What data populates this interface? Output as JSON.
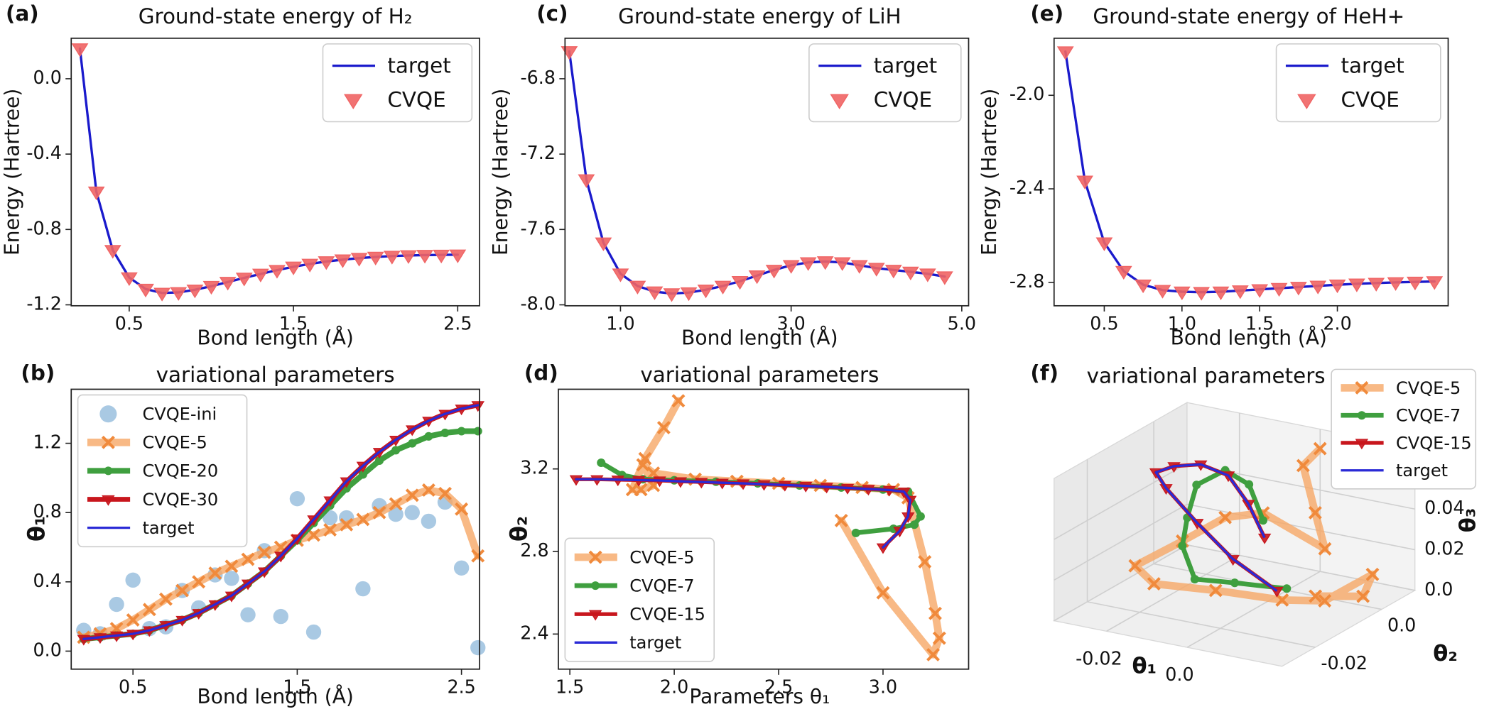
{
  "chart_data": [
    {
      "type": "line",
      "panel_label": "(a)",
      "title": "Ground-state energy of H₂",
      "x_label": "Bond length (Å)",
      "y_label": "Energy (Hartree)",
      "x": [
        0.2,
        0.3,
        0.4,
        0.5,
        0.6,
        0.7,
        0.8,
        0.9,
        1.0,
        1.1,
        1.2,
        1.3,
        1.4,
        1.5,
        1.6,
        1.7,
        1.8,
        1.9,
        2.0,
        2.1,
        2.2,
        2.3,
        2.4,
        2.5
      ],
      "series": [
        {
          "name": "target",
          "color": "#1a1acc",
          "linewidth": 2.5,
          "values": [
            0.16,
            -0.6,
            -0.91,
            -1.055,
            -1.116,
            -1.137,
            -1.134,
            -1.12,
            -1.101,
            -1.079,
            -1.057,
            -1.036,
            -1.016,
            -0.998,
            -0.983,
            -0.97,
            -0.96,
            -0.952,
            -0.946,
            -0.941,
            -0.938,
            -0.936,
            -0.935,
            -0.934
          ]
        },
        {
          "name": "CVQE",
          "color": "#f06464",
          "marker": "triangle",
          "line": false,
          "values": [
            0.16,
            -0.6,
            -0.91,
            -1.055,
            -1.116,
            -1.137,
            -1.134,
            -1.12,
            -1.101,
            -1.079,
            -1.057,
            -1.036,
            -1.016,
            -0.998,
            -0.983,
            -0.97,
            -0.96,
            -0.952,
            -0.946,
            -0.941,
            -0.938,
            -0.936,
            -0.935,
            -0.934
          ]
        }
      ],
      "xlim": [
        0.147,
        2.633
      ],
      "ylim": [
        -1.205,
        0.215
      ],
      "xticks": [
        0.5,
        1.5,
        2.5
      ],
      "yticks": [
        {
          "value": 0,
          "label": "0.0"
        },
        -0.4,
        -0.8,
        -1.2
      ],
      "legend": "upper right"
    },
    {
      "type": "line",
      "panel_label": "(b)",
      "title": "variational parameters",
      "x_label": "Bond length (Å)",
      "y_label": "θ₁",
      "x": [
        0.2,
        0.3,
        0.4,
        0.5,
        0.6,
        0.7,
        0.8,
        0.9,
        1.0,
        1.1,
        1.2,
        1.3,
        1.4,
        1.5,
        1.6,
        1.7,
        1.8,
        1.9,
        2.0,
        2.1,
        2.2,
        2.3,
        2.4,
        2.5,
        2.6
      ],
      "series": [
        {
          "name": "CVQE-ini",
          "color": "#a9c9e3",
          "marker": "circle",
          "line": false,
          "values": [
            0.12,
            0.1,
            0.27,
            0.41,
            0.13,
            0.14,
            0.35,
            0.25,
            0.44,
            0.42,
            0.21,
            0.58,
            0.2,
            0.88,
            0.11,
            0.77,
            0.77,
            0.36,
            0.84,
            0.79,
            0.8,
            0.75,
            0.86,
            0.48,
            0.02
          ]
        },
        {
          "name": "CVQE-5",
          "color": "#f6a866",
          "marker": "x",
          "linewidth": 8,
          "values": [
            0.08,
            0.1,
            0.13,
            0.18,
            0.24,
            0.3,
            0.35,
            0.4,
            0.45,
            0.49,
            0.53,
            0.57,
            0.6,
            0.64,
            0.67,
            0.7,
            0.73,
            0.76,
            0.8,
            0.85,
            0.9,
            0.93,
            0.91,
            0.82,
            0.55
          ]
        },
        {
          "name": "CVQE-20",
          "color": "#3f9f3f",
          "marker": "circle",
          "linewidth": 6,
          "values": [
            0.07,
            0.08,
            0.09,
            0.1,
            0.12,
            0.15,
            0.18,
            0.22,
            0.27,
            0.32,
            0.39,
            0.46,
            0.55,
            0.64,
            0.74,
            0.84,
            0.94,
            1.02,
            1.1,
            1.16,
            1.2,
            1.24,
            1.26,
            1.27,
            1.27
          ]
        },
        {
          "name": "CVQE-30",
          "color": "#c8161d",
          "marker": "triangle",
          "linewidth": 5,
          "values": [
            0.07,
            0.08,
            0.09,
            0.1,
            0.12,
            0.15,
            0.18,
            0.22,
            0.27,
            0.32,
            0.39,
            0.46,
            0.55,
            0.65,
            0.76,
            0.87,
            0.98,
            1.07,
            1.15,
            1.22,
            1.28,
            1.33,
            1.37,
            1.4,
            1.42
          ]
        },
        {
          "name": "target",
          "color": "#2a2ad6",
          "linewidth": 2.5,
          "values": [
            0.07,
            0.08,
            0.09,
            0.1,
            0.12,
            0.15,
            0.18,
            0.22,
            0.27,
            0.32,
            0.39,
            0.46,
            0.55,
            0.65,
            0.76,
            0.87,
            0.98,
            1.07,
            1.15,
            1.22,
            1.28,
            1.33,
            1.37,
            1.4,
            1.42
          ]
        }
      ],
      "xlim": [
        0.124,
        2.61
      ],
      "ylim": [
        -0.104,
        1.512
      ],
      "xticks": [
        0.5,
        1.5,
        2.5
      ],
      "yticks": [
        {
          "value": 0,
          "label": "0.0"
        },
        0.4,
        0.8,
        1.2
      ],
      "legend": "upper left"
    },
    {
      "type": "line",
      "panel_label": "(c)",
      "title": "Ground-state energy of LiH",
      "x_label": "Bond length (Å)",
      "y_label": "Energy (Hartree)",
      "x": [
        0.4,
        0.6,
        0.8,
        1.0,
        1.2,
        1.4,
        1.6,
        1.8,
        2.0,
        2.2,
        2.4,
        2.6,
        2.8,
        3.0,
        3.2,
        3.4,
        3.6,
        3.8,
        4.0,
        4.2,
        4.4,
        4.6,
        4.8
      ],
      "series": [
        {
          "name": "target",
          "color": "#1a1acc",
          "linewidth": 2.5,
          "values": [
            -6.655,
            -7.335,
            -7.67,
            -7.835,
            -7.9,
            -7.93,
            -7.94,
            -7.935,
            -7.92,
            -7.9,
            -7.875,
            -7.845,
            -7.815,
            -7.79,
            -7.775,
            -7.77,
            -7.775,
            -7.79,
            -7.805,
            -7.815,
            -7.825,
            -7.835,
            -7.85
          ]
        },
        {
          "name": "CVQE",
          "color": "#f06464",
          "marker": "triangle",
          "line": false,
          "values": [
            -6.655,
            -7.335,
            -7.67,
            -7.835,
            -7.9,
            -7.93,
            -7.94,
            -7.935,
            -7.92,
            -7.9,
            -7.875,
            -7.845,
            -7.815,
            -7.79,
            -7.775,
            -7.77,
            -7.775,
            -7.79,
            -7.805,
            -7.815,
            -7.825,
            -7.835,
            -7.85
          ]
        }
      ],
      "xlim": [
        0.35,
        5.08
      ],
      "ylim": [
        -8.005,
        -6.585
      ],
      "xticks": [
        {
          "value": 1,
          "label": "1.0"
        },
        {
          "value": 3,
          "label": "3.0"
        },
        {
          "value": 5,
          "label": "5.0"
        }
      ],
      "yticks": [
        -6.8,
        -7.2,
        -7.6,
        {
          "value": -8,
          "label": "-8.0"
        }
      ],
      "legend": "upper right"
    },
    {
      "type": "line",
      "panel_label": "(d)",
      "title": "variational parameters",
      "x_label": "Parameters θ₁",
      "y_label": "θ₂",
      "series": [
        {
          "name": "CVQE-5",
          "color": "#f6a866",
          "marker": "x",
          "linewidth": 8,
          "x": [
            2.02,
            1.95,
            1.86,
            1.8,
            1.84,
            1.9,
            1.85,
            1.9,
            2.1,
            2.3,
            2.5,
            2.7,
            2.9,
            3.05,
            3.12,
            3.2,
            3.25,
            3.27,
            3.24,
            3.0,
            2.8
          ],
          "values": [
            3.53,
            3.4,
            3.25,
            3.1,
            3.1,
            3.12,
            3.22,
            3.18,
            3.15,
            3.14,
            3.13,
            3.12,
            3.11,
            3.1,
            3.06,
            2.75,
            2.5,
            2.38,
            2.3,
            2.6,
            2.95
          ]
        },
        {
          "name": "CVQE-7",
          "color": "#3f9f3f",
          "marker": "circle",
          "linewidth": 5,
          "x": [
            1.65,
            1.75,
            1.85,
            2.0,
            2.2,
            2.4,
            2.6,
            2.8,
            3.0,
            3.12,
            3.18,
            3.15,
            3.05,
            2.87
          ],
          "values": [
            3.23,
            3.17,
            3.15,
            3.145,
            3.138,
            3.13,
            3.12,
            3.11,
            3.1,
            3.09,
            2.97,
            2.93,
            2.91,
            2.89
          ]
        },
        {
          "name": "CVQE-15",
          "color": "#c8161d",
          "marker": "triangle",
          "linewidth": 4,
          "x": [
            1.53,
            1.63,
            1.73,
            1.83,
            1.93,
            2.03,
            2.13,
            2.23,
            2.33,
            2.43,
            2.53,
            2.63,
            2.73,
            2.83,
            2.93,
            3.03,
            3.1,
            3.13,
            3.12,
            3.08,
            3.0
          ],
          "values": [
            3.15,
            3.15,
            3.148,
            3.146,
            3.144,
            3.14,
            3.137,
            3.133,
            3.13,
            3.126,
            3.122,
            3.118,
            3.113,
            3.108,
            3.103,
            3.098,
            3.09,
            3.05,
            2.97,
            2.9,
            2.82
          ]
        },
        {
          "name": "target",
          "color": "#2a2ad6",
          "linewidth": 2.5,
          "x": [
            1.53,
            1.63,
            1.73,
            1.83,
            1.93,
            2.03,
            2.13,
            2.23,
            2.33,
            2.43,
            2.53,
            2.63,
            2.73,
            2.83,
            2.93,
            3.03,
            3.1,
            3.13,
            3.12,
            3.08,
            3.0
          ],
          "values": [
            3.15,
            3.15,
            3.148,
            3.146,
            3.144,
            3.14,
            3.137,
            3.133,
            3.13,
            3.126,
            3.122,
            3.118,
            3.113,
            3.108,
            3.103,
            3.098,
            3.09,
            3.05,
            2.97,
            2.9,
            2.82
          ]
        }
      ],
      "xlim": [
        1.445,
        3.41
      ],
      "ylim": [
        2.23,
        3.586
      ],
      "xticks": [
        1.5,
        {
          "value": 2,
          "label": "2.0"
        },
        2.5,
        {
          "value": 3,
          "label": "3.0"
        }
      ],
      "yticks": [
        2.4,
        2.8,
        3.2
      ],
      "legend": "lower left"
    },
    {
      "type": "line",
      "panel_label": "(e)",
      "title": "Ground-state energy of HeH+",
      "x_label": "Bond length (Å)",
      "y_label": "Energy (Hartree)",
      "x": [
        0.25,
        0.375,
        0.5,
        0.625,
        0.75,
        0.875,
        1.0,
        1.125,
        1.25,
        1.375,
        1.5,
        1.625,
        1.75,
        1.875,
        2.0,
        2.125,
        2.25,
        2.375,
        2.5,
        2.625
      ],
      "series": [
        {
          "name": "target",
          "color": "#1a1acc",
          "linewidth": 2.5,
          "values": [
            -1.813,
            -2.366,
            -2.63,
            -2.752,
            -2.81,
            -2.833,
            -2.84,
            -2.842,
            -2.84,
            -2.835,
            -2.83,
            -2.825,
            -2.82,
            -2.815,
            -2.81,
            -2.806,
            -2.803,
            -2.8,
            -2.798,
            -2.796
          ]
        },
        {
          "name": "CVQE",
          "color": "#f06464",
          "marker": "triangle",
          "line": false,
          "values": [
            -1.813,
            -2.366,
            -2.63,
            -2.752,
            -2.81,
            -2.833,
            -2.84,
            -2.842,
            -2.84,
            -2.835,
            -2.83,
            -2.825,
            -2.82,
            -2.815,
            -2.81,
            -2.806,
            -2.803,
            -2.8,
            -2.798,
            -2.796
          ]
        }
      ],
      "xlim": [
        0.177,
        2.713
      ],
      "ylim": [
        -2.9,
        -1.756
      ],
      "xticks": [
        0.5,
        {
          "value": 1,
          "label": "1.0"
        },
        1.5,
        {
          "value": 2,
          "label": "2.0"
        }
      ],
      "yticks": [
        {
          "value": -2,
          "label": "-2.0"
        },
        -2.4,
        -2.8
      ],
      "legend": "upper right"
    },
    {
      "type": "line3d",
      "panel_label": "(f)",
      "title": "variational parameters",
      "x_label": "θ₁",
      "y_label": "θ₂",
      "z_label": "θ₃",
      "series": [
        {
          "name": "CVQE-5",
          "color": "#f6a866",
          "marker": "x",
          "linewidth": 8,
          "x": [
            0.0041,
            -0.0001,
            0.0029,
            0.0053,
            -0.0059,
            -0.0153,
            -0.0259,
            -0.0294,
            -0.0206,
            -0.0053,
            0.0153,
            0.0176,
            0.0171,
            0.023,
            0.0153
          ],
          "y": [
            0.005,
            0.005,
            0.005,
            0.005,
            0,
            0,
            0,
            -0.01,
            -0.015,
            -0.015,
            -0.02,
            -0.01,
            0.005,
            -0.005,
            -0.01
          ],
          "z": [
            0.0667,
            0.0567,
            0.0347,
            0.0179,
            0.0358,
            0.0298,
            0.014,
            0.0098,
            0.0091,
            0.0119,
            0.02,
            0.0112,
            0.01,
            0.0109,
            0.0126
          ]
        },
        {
          "name": "CVQE-7",
          "color": "#3f9f3f",
          "marker": "circle",
          "linewidth": 5,
          "x": [
            -0.0059,
            -0.0094,
            -0.0153,
            -0.0224,
            -0.0247,
            -0.0218,
            -0.0146,
            -0.0047,
            0.0082
          ],
          "y": [
            0,
            0,
            0,
            0,
            0,
            -0.005,
            -0.01,
            -0.01,
            -0.01
          ],
          "z": [
            0.0321,
            0.0484,
            0.053,
            0.043,
            0.026,
            0.0179,
            0.0091,
            0.0112,
            0.0135
          ]
        },
        {
          "name": "CVQE-15",
          "color": "#c8161d",
          "marker": "triangle",
          "linewidth": 4,
          "x": [
            0.014,
            -0.001,
            -0.014,
            -0.025,
            -0.03,
            -0.028,
            -0.023,
            -0.017,
            -0.012,
            -0.008
          ],
          "y": [
            -0.02,
            -0.015,
            -0.01,
            -0.006,
            -0.003,
            0,
            0.002,
            0.003,
            0.003,
            0.003
          ],
          "z": [
            0.024,
            0.029,
            0.037,
            0.046,
            0.049,
            0.05,
            0.051,
            0.047,
            0.035,
            0.02
          ]
        },
        {
          "name": "target",
          "color": "#2a2ad6",
          "linewidth": 2.5,
          "x": [
            0.014,
            -0.001,
            -0.014,
            -0.025,
            -0.03,
            -0.028,
            -0.023,
            -0.017,
            -0.012,
            -0.008
          ],
          "y": [
            -0.02,
            -0.015,
            -0.01,
            -0.006,
            -0.003,
            0,
            0.002,
            0.003,
            0.003,
            0.003
          ],
          "z": [
            0.024,
            0.029,
            0.037,
            0.046,
            0.049,
            0.05,
            0.051,
            0.047,
            0.035,
            0.02
          ]
        }
      ],
      "xlim": [
        -0.033,
        0.0235
      ],
      "ylim": [
        -0.03,
        0.01
      ],
      "zlim": [
        0,
        0.07
      ],
      "xticks": [
        -0.02,
        {
          "value": 0,
          "label": "0.0"
        }
      ],
      "yticks": [
        -0.02,
        {
          "value": 0,
          "label": "0.0"
        }
      ],
      "zticks": [
        {
          "value": 0,
          "label": "0.0"
        },
        0.02,
        0.04
      ],
      "legend": "upper right"
    }
  ]
}
